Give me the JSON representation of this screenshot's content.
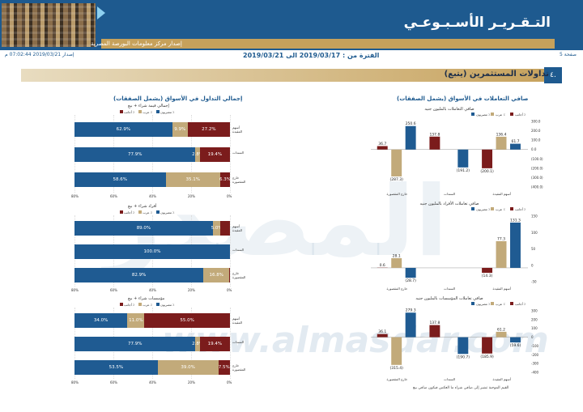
{
  "header": {
    "title": "التـقـريـر الأسـبـوعـي",
    "subtitle": "إصدار مركز معلومات البورصة المصرية"
  },
  "info": {
    "page": "صفحة 5",
    "period": "الفترة من : 2019/03/17 الى 2019/03/21",
    "issued": "إصدار 2019/03/21 07:02:44 م"
  },
  "section": {
    "number": "٤.",
    "title": "تداولات المستثمرين  (يتبع)"
  },
  "watermark": {
    "brand": "المصدر",
    "site": "www.almasdar.com"
  },
  "legend": {
    "egy": "مصريون ٪",
    "arab": "عرب ٪",
    "foreign": "أجانب ٪"
  },
  "right_panel": {
    "title": "صافي التعاملات في الأسواق (يشمل الصفقات)",
    "footnote": "القيم الموجبة تشير إلى صافي شراء ما العكس فيكون صافي بيع"
  },
  "left_panel": {
    "title": "إجمالي التداول في الأسواق (يشمل الصفقات)"
  },
  "colors": {
    "egy": "#1f5b92",
    "arab": "#c2aa7a",
    "foreign": "#7b1c1c"
  },
  "chart_data": [
    {
      "type": "bar",
      "title": "صافي التعاملات بالمليون جنيه",
      "categories": [
        "خارج المقصورة",
        "السندات",
        "أسهم المقيدة"
      ],
      "ylim": [
        -400,
        300
      ],
      "yticks": [
        "300.0",
        "200.0",
        "100.0",
        "0.0",
        "(100.0)",
        "(200.0)",
        "(300.0)",
        "(400.0)"
      ],
      "series": [
        {
          "name": "أجانب ٪",
          "values": [
            36.7,
            137.8,
            -200.1
          ],
          "labels": [
            "36.7",
            "137.8",
            "(200.1)"
          ]
        },
        {
          "name": "عرب ٪",
          "values": [
            -287.3,
            0,
            136.4
          ],
          "labels": [
            "(287.3)",
            "",
            "136.4"
          ]
        },
        {
          "name": "مصريون ٪",
          "values": [
            250.6,
            -191.2,
            61.7
          ],
          "labels": [
            "250.6",
            "(191.2)",
            "61.7"
          ]
        }
      ]
    },
    {
      "type": "bar",
      "title": "صافي تعاملات الأفراد بالمليون جنيه",
      "categories": [
        "خارج المقصورة",
        "السندات",
        "أسهم المقيدة"
      ],
      "ylim": [
        -40,
        150
      ],
      "yticks": [
        "150",
        "100",
        "50",
        "0",
        "-50"
      ],
      "series": [
        {
          "name": "أجانب ٪",
          "values": [
            0.6,
            0,
            -14.3
          ],
          "labels": [
            "0.6",
            "",
            "(14.3)"
          ]
        },
        {
          "name": "عرب ٪",
          "values": [
            28.1,
            0,
            77.3
          ],
          "labels": [
            "28.1",
            "",
            "77.3"
          ]
        },
        {
          "name": "مصريون ٪",
          "values": [
            -28.7,
            0,
            131.3
          ],
          "labels": [
            "(28.7)",
            "",
            "131.3"
          ]
        }
      ]
    },
    {
      "type": "bar",
      "title": "صافي تعاملات المؤسسات بالمليون جنيه",
      "categories": [
        "خارج المقصورة",
        "السندات",
        "أسهم المقيدة"
      ],
      "ylim": [
        -400,
        300
      ],
      "yticks": [
        "300",
        "200",
        "100",
        "0",
        "-100",
        "-200",
        "-300",
        "-400"
      ],
      "series": [
        {
          "name": "أجانب ٪",
          "values": [
            36.1,
            137.8,
            -185.9
          ],
          "labels": [
            "36.1",
            "137.8",
            "(185.9)"
          ]
        },
        {
          "name": "عرب ٪",
          "values": [
            -315.4,
            0,
            61.2
          ],
          "labels": [
            "(315.4)",
            "",
            "61.2"
          ]
        },
        {
          "name": "مصريون ٪",
          "values": [
            279.3,
            -190.7,
            -59.6
          ],
          "labels": [
            "279.3",
            "(190.7)",
            "(59.6)"
          ]
        }
      ]
    },
    {
      "type": "bar",
      "stacked": true,
      "orientation": "horizontal",
      "title": "إجمالي قيمة شراء + بيع",
      "categories": [
        "أسهم المقيدة",
        "السندات",
        "خارج المقصورة"
      ],
      "series": [
        {
          "name": "مصريون ٪",
          "values": [
            62.9,
            77.9,
            58.6
          ]
        },
        {
          "name": "عرب ٪",
          "values": [
            9.9,
            2.8,
            35.1
          ]
        },
        {
          "name": "أجانب ٪",
          "values": [
            27.2,
            19.4,
            6.3
          ]
        }
      ],
      "xticks": [
        "80%",
        "60%",
        "40%",
        "20%",
        "0%"
      ]
    },
    {
      "type": "bar",
      "stacked": true,
      "orientation": "horizontal",
      "title": "أفراد شراء + بيع",
      "categories": [
        "أسهم المقيدة",
        "السندات",
        "خارج المقصورة"
      ],
      "series": [
        {
          "name": "مصريون ٪",
          "values": [
            89.0,
            100.0,
            82.9
          ]
        },
        {
          "name": "عرب ٪",
          "values": [
            5.0,
            0,
            16.8
          ]
        },
        {
          "name": "أجانب ٪",
          "values": [
            6.0,
            0,
            0.3
          ]
        }
      ],
      "labels": [
        [
          "89.0%",
          "5.0%",
          ""
        ],
        [
          "100.0%",
          "",
          ""
        ],
        [
          "82.9%",
          "16.8%",
          ""
        ]
      ],
      "xticks": [
        "80%",
        "60%",
        "40%",
        "20%",
        "0%"
      ]
    },
    {
      "type": "bar",
      "stacked": true,
      "orientation": "horizontal",
      "title": "مؤسسات شراء + بيع",
      "categories": [
        "أسهم المقيدة",
        "السندات",
        "خارج المقصورة"
      ],
      "series": [
        {
          "name": "مصريون ٪",
          "values": [
            34.0,
            77.9,
            53.5
          ]
        },
        {
          "name": "عرب ٪",
          "values": [
            11.0,
            2.8,
            39.0
          ]
        },
        {
          "name": "أجانب ٪",
          "values": [
            55.0,
            19.4,
            7.5
          ]
        }
      ],
      "xticks": [
        "80%",
        "60%",
        "40%",
        "20%",
        "0%"
      ]
    }
  ]
}
